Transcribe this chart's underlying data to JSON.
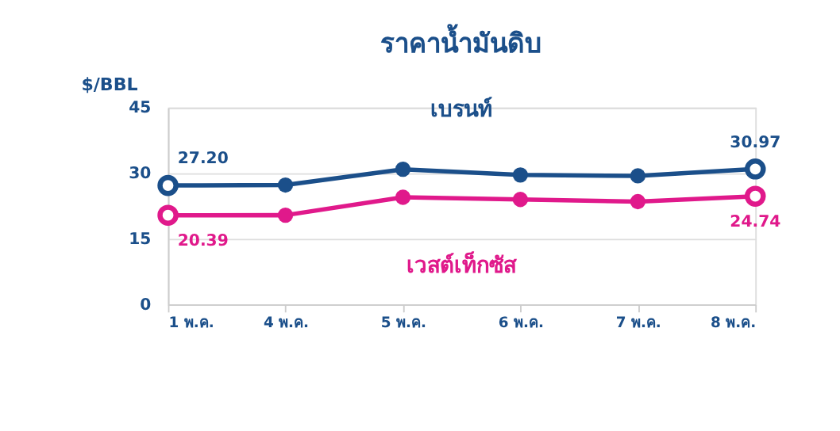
{
  "chart_data": {
    "type": "line",
    "title": "ราคาน้ำมันดิบ",
    "ylabel": "$/BBL",
    "categories": [
      "1 พ.ค.",
      "4 พ.ค.",
      "5 พ.ค.",
      "6 พ.ค.",
      "7 พ.ค.",
      "8 พ.ค."
    ],
    "series": [
      {
        "name": "เบรนท์",
        "color": "#1b4f8a",
        "values": [
          27.2,
          27.3,
          30.9,
          29.6,
          29.4,
          30.97
        ],
        "value_labels": [
          "27.20",
          null,
          null,
          null,
          null,
          "30.97"
        ]
      },
      {
        "name": "เวสต์เท็กซัส",
        "color": "#e0198b",
        "values": [
          20.39,
          20.4,
          24.5,
          24.0,
          23.5,
          24.74
        ],
        "value_labels": [
          "20.39",
          null,
          null,
          null,
          null,
          "24.74"
        ]
      }
    ],
    "ylim": [
      0,
      45
    ],
    "yticks": [
      0,
      15,
      30,
      45
    ],
    "grid": "y",
    "legend": false,
    "marker": "circle",
    "line_style": "solid"
  }
}
